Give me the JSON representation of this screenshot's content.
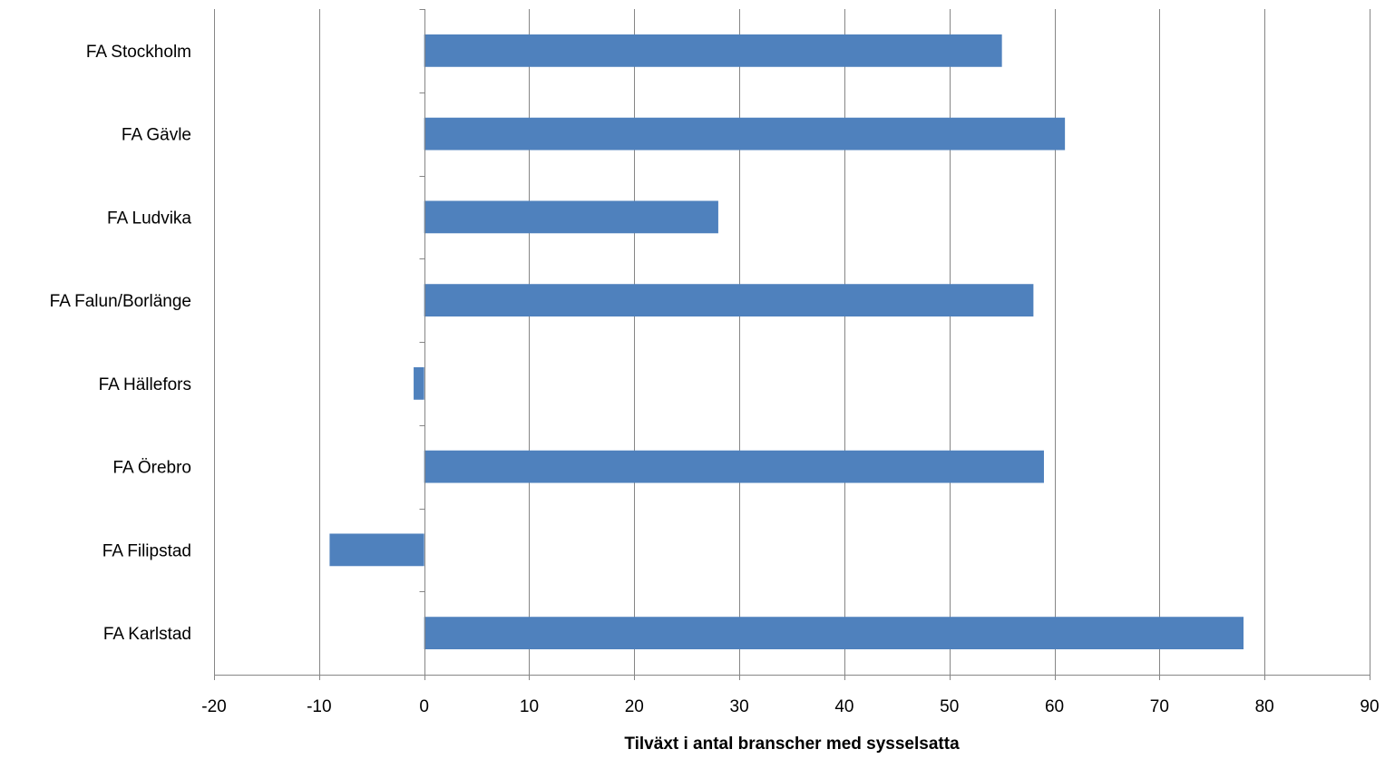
{
  "chart_data": {
    "type": "bar",
    "orientation": "horizontal",
    "categories": [
      "FA Stockholm",
      "FA Gävle",
      "FA Ludvika",
      "FA Falun/Borlänge",
      "FA Hällefors",
      "FA Örebro",
      "FA Filipstad",
      "FA Karlstad"
    ],
    "values": [
      55,
      61,
      28,
      58,
      -1,
      59,
      -9,
      78
    ],
    "title": "",
    "xlabel": "Tilväxt i antal branscher med sysselsatta",
    "ylabel": "",
    "xlim": [
      -20,
      90
    ],
    "xticks": [
      -20,
      -10,
      0,
      10,
      20,
      30,
      40,
      50,
      60,
      70,
      80,
      90
    ],
    "grid": "vertical",
    "legend": "none",
    "bar_color": "#4F81BD",
    "grid_color": "#868686",
    "axis_color": "#868686"
  }
}
